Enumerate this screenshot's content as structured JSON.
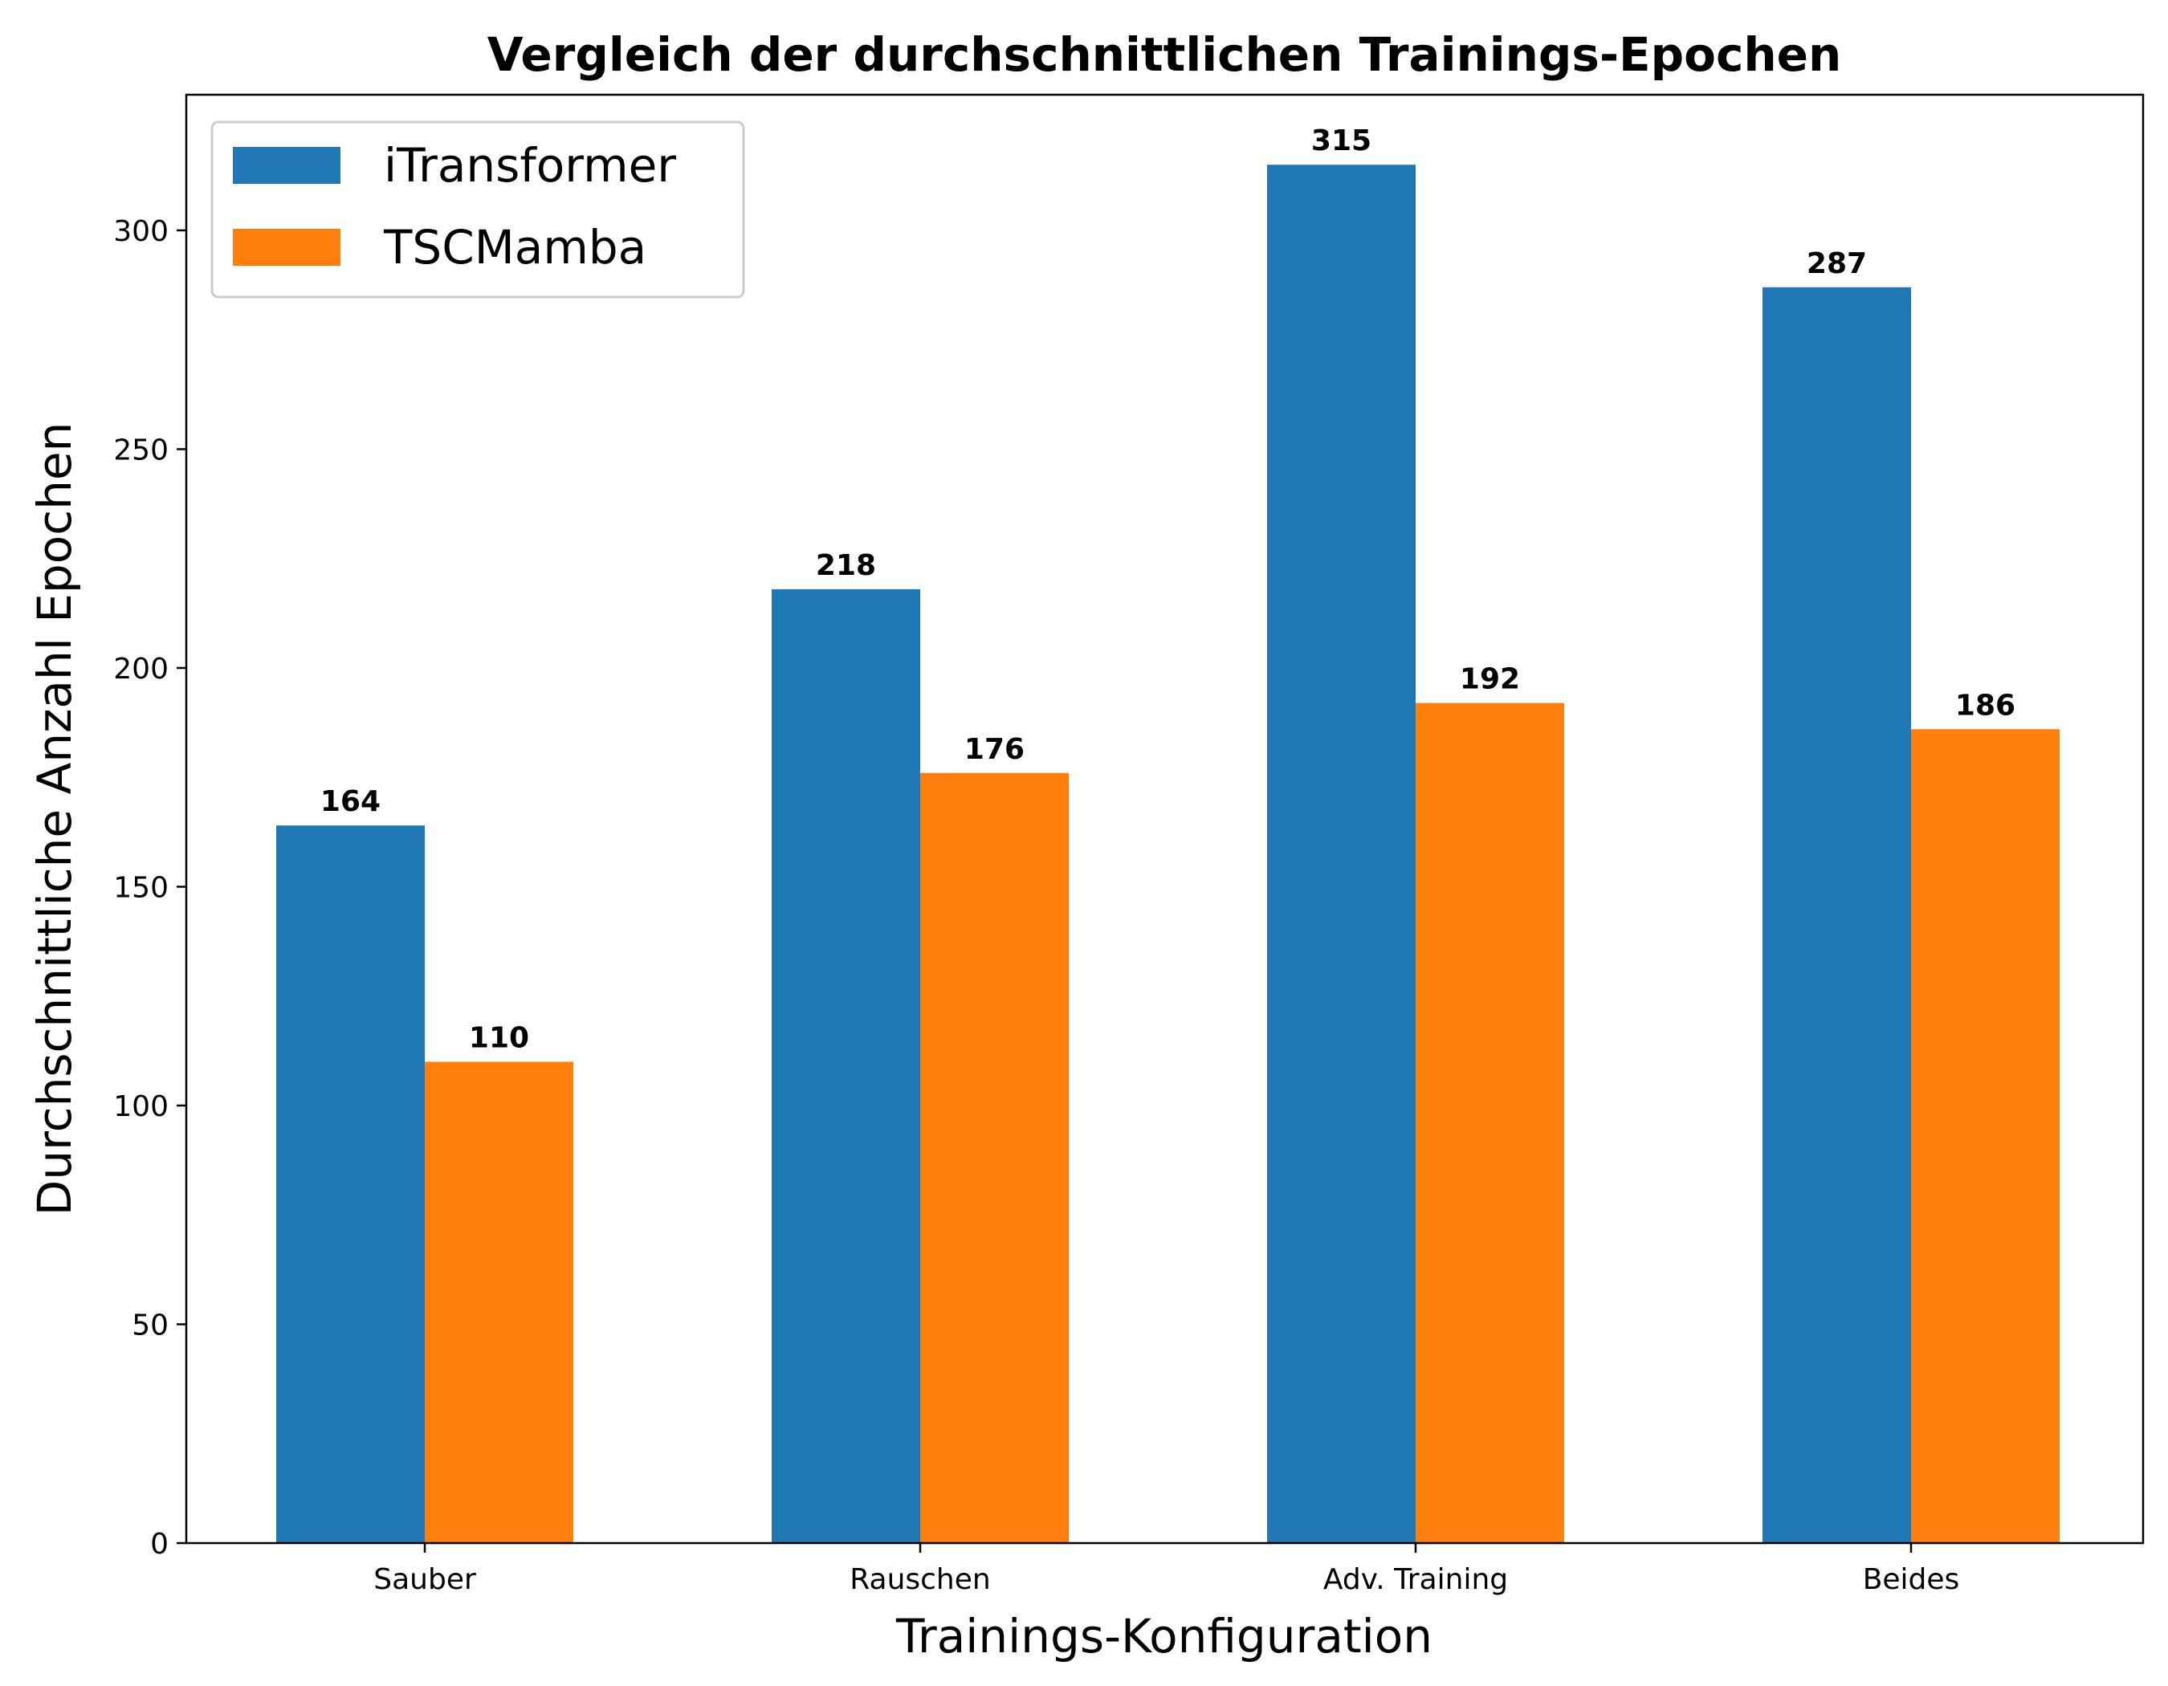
{
  "chart_data": {
    "type": "bar",
    "title": "Vergleich der durchschnittlichen Trainings-Epochen",
    "xlabel": "Trainings-Konfiguration",
    "ylabel": "Durchschnittliche Anzahl Epochen",
    "categories": [
      "Sauber",
      "Rauschen",
      "Adv. Training",
      "Beides"
    ],
    "series": [
      {
        "name": "iTransformer",
        "color": "#1f77b4",
        "values": [
          164,
          218,
          315,
          287
        ]
      },
      {
        "name": "TSCMamba",
        "color": "#ff7f0e",
        "values": [
          110,
          176,
          192,
          186
        ]
      }
    ],
    "ylim": [
      0,
      331
    ],
    "yticks": [
      0,
      50,
      100,
      150,
      200,
      250,
      300
    ],
    "grid": false,
    "legend_position": "top-left"
  }
}
